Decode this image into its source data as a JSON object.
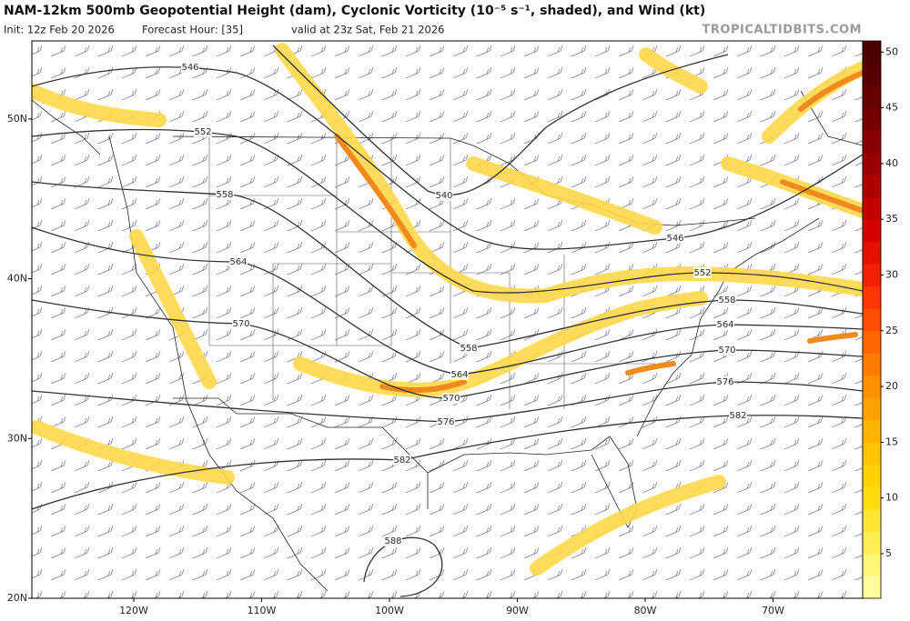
{
  "header": {
    "title": "NAM-12km 500mb Geopotential Height (dam), Cyclonic Vorticity (10⁻⁵ s⁻¹, shaded), and Wind (kt)",
    "init": "Init: 12z Feb 20 2026",
    "forecast_hour": "Forecast Hour: [35]",
    "valid": "valid at 23z Sat, Feb 21 2026",
    "brand": "TROPICALTIDBITS.COM"
  },
  "map": {
    "longitudes": [
      {
        "value": -120,
        "label": "120W"
      },
      {
        "value": -110,
        "label": "110W"
      },
      {
        "value": -100,
        "label": "100W"
      },
      {
        "value": -90,
        "label": "90W"
      },
      {
        "value": -80,
        "label": "80W"
      },
      {
        "value": -70,
        "label": "70W"
      }
    ],
    "latitudes": [
      {
        "value": 50,
        "label": "50N"
      },
      {
        "value": 40,
        "label": "40N"
      },
      {
        "value": 30,
        "label": "30N"
      },
      {
        "value": 20,
        "label": "20N"
      }
    ],
    "contour_labels": [
      546,
      552,
      558,
      564,
      570,
      540,
      546,
      552,
      558,
      564,
      570,
      576,
      582,
      558,
      564,
      570,
      576,
      582,
      588
    ]
  },
  "colorbar": {
    "lim": [
      1,
      51
    ],
    "ticks": [
      5,
      10,
      15,
      20,
      25,
      30,
      35,
      40,
      45,
      50
    ],
    "colors": [
      "#ffff9e",
      "#fff67a",
      "#ffee55",
      "#ffe633",
      "#ffdd11",
      "#ffd200",
      "#ffc400",
      "#ffb400",
      "#ffa200",
      "#ff9000",
      "#ff7c00",
      "#ff6600",
      "#ff4e00",
      "#ff3600",
      "#f52000",
      "#e61000",
      "#d40000",
      "#c20000",
      "#ae0000",
      "#9a0000",
      "#880000",
      "#760000",
      "#660000",
      "#580000",
      "#4c0000"
    ]
  }
}
